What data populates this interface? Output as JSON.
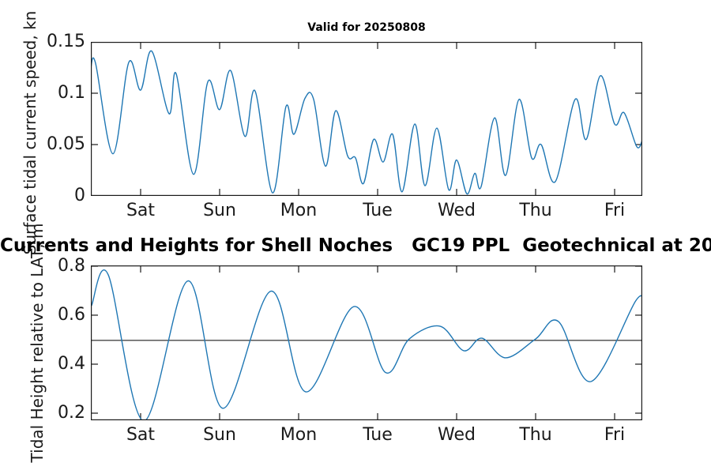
{
  "figure": {
    "background": "#ffffff",
    "axis_color": "#1a1a1a",
    "text_color": "#1a1a1a",
    "line_color": "#1f77b4",
    "ref_line_color": "#000000"
  },
  "chart_data": [
    {
      "type": "line",
      "title": "Valid for 20250808",
      "xlabel": "",
      "ylabel": "Surface tidal current speed, kn",
      "legend": "none",
      "grid": false,
      "x_tick_labels": [
        "Sat",
        "Sun",
        "Mon",
        "Tue",
        "Wed",
        "Thu",
        "Fri"
      ],
      "x_tick_values": [
        0,
        1,
        2,
        3,
        4,
        5,
        6
      ],
      "y_tick_labels": [
        "0",
        "0.05",
        "0.1",
        "0.15"
      ],
      "y_tick_values": [
        0,
        0.05,
        0.1,
        0.15
      ],
      "xlim": [
        -0.63,
        6.35
      ],
      "ylim": [
        0,
        0.15
      ],
      "line_color": "#1f77b4",
      "series": [
        {
          "name": "surface-tidal-current-speed",
          "x": [
            -0.63,
            -0.57,
            -0.35,
            -0.15,
            0.0,
            0.14,
            0.36,
            0.45,
            0.67,
            0.85,
            1.0,
            1.14,
            1.32,
            1.45,
            1.67,
            1.84,
            1.94,
            2.08,
            2.19,
            2.34,
            2.47,
            2.62,
            2.72,
            2.82,
            2.95,
            3.07,
            3.19,
            3.31,
            3.47,
            3.6,
            3.75,
            3.9,
            4.0,
            4.13,
            4.23,
            4.31,
            4.48,
            4.62,
            4.79,
            4.95,
            5.07,
            5.25,
            5.5,
            5.64,
            5.82,
            6.0,
            6.12,
            6.28,
            6.35
          ],
          "y": [
            0.125,
            0.129,
            0.041,
            0.13,
            0.103,
            0.141,
            0.08,
            0.119,
            0.021,
            0.111,
            0.084,
            0.122,
            0.058,
            0.102,
            0.003,
            0.087,
            0.06,
            0.095,
            0.094,
            0.029,
            0.083,
            0.039,
            0.037,
            0.012,
            0.055,
            0.033,
            0.06,
            0.004,
            0.07,
            0.01,
            0.066,
            0.006,
            0.035,
            0.002,
            0.022,
            0.009,
            0.076,
            0.02,
            0.094,
            0.037,
            0.05,
            0.014,
            0.094,
            0.055,
            0.117,
            0.07,
            0.081,
            0.048,
            0.054
          ]
        }
      ]
    },
    {
      "type": "line",
      "title": "Currents and Heights for Shell Noches   GC19 PPL  Geotechnical at 20",
      "xlabel": "",
      "ylabel": "Tidal Height relative to LAT, m",
      "legend": "none",
      "grid": false,
      "x_tick_labels": [
        "Sat",
        "Sun",
        "Mon",
        "Tue",
        "Wed",
        "Thu",
        "Fri"
      ],
      "x_tick_values": [
        0,
        1,
        2,
        3,
        4,
        5,
        6
      ],
      "y_tick_labels": [
        "0.2",
        "0.4",
        "0.6",
        "0.8"
      ],
      "y_tick_values": [
        0.2,
        0.4,
        0.6,
        0.8
      ],
      "xlim": [
        -0.63,
        6.35
      ],
      "ylim": [
        0.171,
        0.803
      ],
      "line_color": "#1f77b4",
      "ref_line": {
        "y": 0.497,
        "color": "#000000"
      },
      "series": [
        {
          "name": "tidal-height-relative-to-lat",
          "x": [
            -0.62,
            -0.41,
            0.04,
            0.6,
            1.04,
            1.65,
            2.09,
            2.7,
            3.1,
            3.4,
            3.79,
            4.09,
            4.32,
            4.62,
            5.0,
            5.29,
            5.7,
            6.27,
            6.37
          ],
          "y": [
            0.64,
            0.765,
            0.168,
            0.74,
            0.22,
            0.698,
            0.287,
            0.635,
            0.366,
            0.503,
            0.555,
            0.455,
            0.506,
            0.426,
            0.503,
            0.574,
            0.329,
            0.66,
            0.64
          ]
        }
      ]
    }
  ]
}
